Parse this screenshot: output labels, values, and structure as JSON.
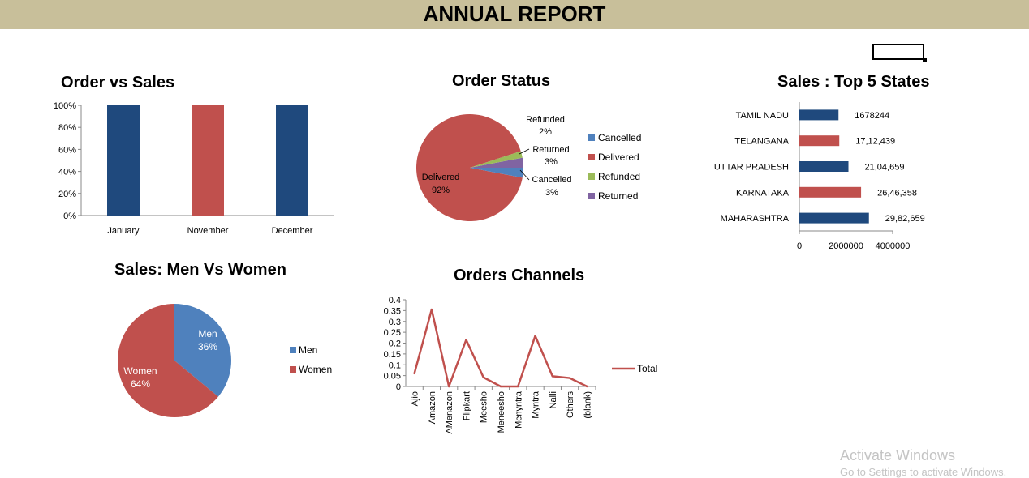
{
  "header": {
    "title": "ANNUAL REPORT"
  },
  "watermark": {
    "title": "Activate Windows",
    "subtitle": "Go to Settings to activate Windows."
  },
  "colors": {
    "banner": "#c8bf9a",
    "blue": "#1f497d",
    "red": "#c0504d",
    "green": "#9bbb59",
    "purple": "#8064a2",
    "lightblue": "#4f81bd"
  },
  "chart_data": [
    {
      "id": "order-vs-sales",
      "type": "bar",
      "title": "Order vs Sales",
      "categories": [
        "January",
        "November",
        "December"
      ],
      "values": [
        100,
        100,
        100
      ],
      "bar_colors": [
        "#1f497d",
        "#c0504d",
        "#1f497d"
      ],
      "yticks": [
        "0%",
        "20%",
        "40%",
        "60%",
        "80%",
        "100%"
      ],
      "ylim": [
        0,
        100
      ],
      "grid": false
    },
    {
      "id": "order-status",
      "type": "pie",
      "title": "Order Status",
      "slices": [
        {
          "name": "Cancelled",
          "value": 3,
          "label": "3%",
          "color": "#4f81bd"
        },
        {
          "name": "Delivered",
          "value": 92,
          "label": "92%",
          "color": "#c0504d"
        },
        {
          "name": "Refunded",
          "value": 2,
          "label": "2%",
          "color": "#9bbb59"
        },
        {
          "name": "Returned",
          "value": 3,
          "label": "3%",
          "color": "#8064a2"
        }
      ],
      "legend": "right"
    },
    {
      "id": "top-states",
      "type": "bar",
      "orientation": "horizontal",
      "title": "Sales : Top 5 States",
      "categories": [
        "TAMIL NADU",
        "TELANGANA",
        "UTTAR PRADESH",
        "KARNATAKA",
        "MAHARASHTRA"
      ],
      "values": [
        1678244,
        1712439,
        2104659,
        2646358,
        2982659
      ],
      "data_labels": [
        "1678244",
        "17,12,439",
        "21,04,659",
        "26,46,358",
        "29,82,659"
      ],
      "bar_colors": [
        "#1f497d",
        "#c0504d",
        "#1f497d",
        "#c0504d",
        "#1f497d"
      ],
      "xticks": [
        "0",
        "2000000",
        "4000000"
      ],
      "xlim": [
        0,
        4000000
      ],
      "grid": false
    },
    {
      "id": "men-vs-women",
      "type": "pie",
      "title": "Sales: Men Vs Women",
      "slices": [
        {
          "name": "Men",
          "value": 36,
          "label": "36%",
          "color": "#4f81bd"
        },
        {
          "name": "Women",
          "value": 64,
          "label": "64%",
          "color": "#c0504d"
        }
      ],
      "legend": "right"
    },
    {
      "id": "orders-channels",
      "type": "line",
      "title": "Orders Channels",
      "categories": [
        "Ajio",
        "Amazon",
        "AMenazon",
        "Flipkart",
        "Meesho",
        "Meneesho",
        "Menyntra",
        "Myntra",
        "Nalli",
        "Others",
        "(blank)"
      ],
      "series": [
        {
          "name": "Total",
          "values": [
            0.06,
            0.355,
            0.0,
            0.215,
            0.042,
            0.0,
            0.0,
            0.233,
            0.047,
            0.039,
            0.0
          ],
          "color": "#c0504d"
        }
      ],
      "yticks": [
        "0",
        "0.05",
        "0.1",
        "0.15",
        "0.2",
        "0.25",
        "0.3",
        "0.35",
        "0.4"
      ],
      "ylim": [
        0,
        0.4
      ],
      "legend": "right",
      "grid": false
    }
  ]
}
